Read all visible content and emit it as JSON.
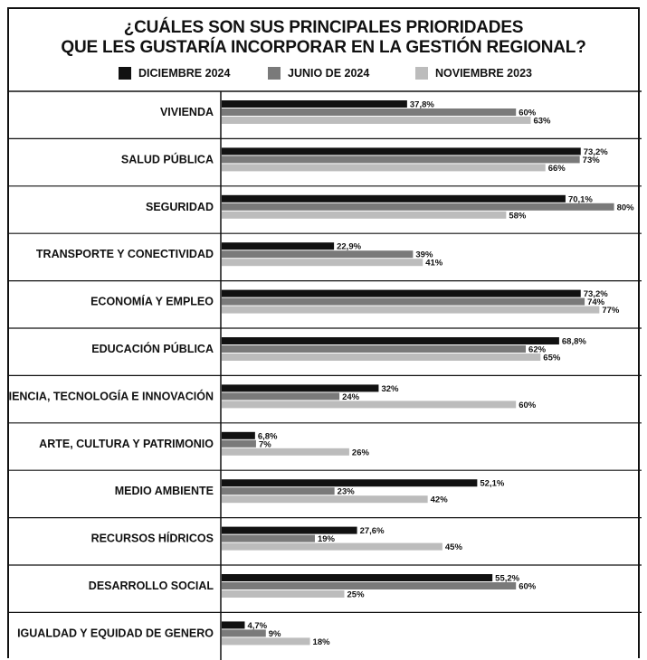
{
  "chart_data": {
    "type": "bar",
    "orientation": "horizontal",
    "title": [
      "¿CUÁLES SON SUS PRINCIPALES PRIORIDADES",
      "QUE LES GUSTARÍA INCORPORAR EN LA GESTIÓN REGIONAL?"
    ],
    "legend_position": "top",
    "xlim": [
      0,
      100
    ],
    "grid": false,
    "categories": [
      "VIVIENDA",
      "SALUD PÚBLICA",
      "SEGURIDAD",
      "TRANSPORTE Y CONECTIVIDAD",
      "ECONOMÍA Y EMPLEO",
      "EDUCACIÓN PÚBLICA",
      "CIENCIA, TECNOLOGÍA E INNOVACIÓN",
      "ARTE, CULTURA Y PATRIMONIO",
      "MEDIO AMBIENTE",
      "RECURSOS HÍDRICOS",
      "DESARROLLO SOCIAL",
      "IGUALDAD Y EQUIDAD DE GENERO"
    ],
    "series": [
      {
        "name": "DICIEMBRE 2024",
        "color": "#111111",
        "values": [
          37.8,
          73.2,
          70.1,
          22.9,
          73.2,
          68.8,
          32,
          6.8,
          52.1,
          27.6,
          55.2,
          4.7
        ],
        "labels": [
          "37,8%",
          "73,2%",
          "70,1%",
          "22,9%",
          "73,2%",
          "68,8%",
          "32%",
          "6,8%",
          "52,1%",
          "27,6%",
          "55,2%",
          "4,7%"
        ]
      },
      {
        "name": "JUNIO DE 2024",
        "color": "#7a7a7a",
        "values": [
          60,
          73,
          80,
          39,
          74,
          62,
          24,
          7,
          23,
          19,
          60,
          9
        ],
        "labels": [
          "60%",
          "73%",
          "80%",
          "39%",
          "74%",
          "62%",
          "24%",
          "7%",
          "23%",
          "19%",
          "60%",
          "9%"
        ]
      },
      {
        "name": "NOVIEMBRE 2023",
        "color": "#bcbcbc",
        "values": [
          63,
          66,
          58,
          41,
          77,
          65,
          60,
          26,
          42,
          45,
          25,
          18
        ],
        "labels": [
          "63%",
          "66%",
          "58%",
          "41%",
          "77%",
          "65%",
          "60%",
          "26%",
          "42%",
          "45%",
          "25%",
          "18%"
        ]
      }
    ]
  }
}
